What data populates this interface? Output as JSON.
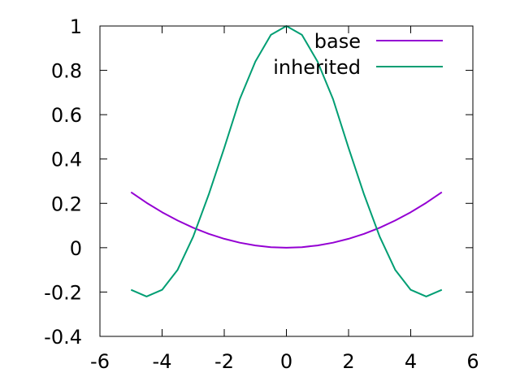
{
  "chart_data": {
    "type": "line",
    "title": "",
    "xlabel": "",
    "ylabel": "",
    "xlim": [
      -6,
      6
    ],
    "ylim": [
      -0.4,
      1
    ],
    "x_ticks": [
      -6,
      -4,
      -2,
      0,
      2,
      4,
      6
    ],
    "y_ticks": [
      -0.4,
      -0.2,
      0,
      0.2,
      0.4,
      0.6,
      0.8,
      1
    ],
    "x_tick_labels": [
      "-6",
      "-4",
      "-2",
      "0",
      "2",
      "4",
      "6"
    ],
    "y_tick_labels": [
      "-0.4",
      "-0.2",
      "0",
      "0.2",
      "0.4",
      "0.6",
      "0.8",
      "1"
    ],
    "grid": false,
    "legend_position": "top-right",
    "series": [
      {
        "name": "base",
        "color": "#9400d3",
        "x": [
          -5,
          -4.5,
          -4,
          -3.5,
          -3,
          -2.5,
          -2,
          -1.5,
          -1,
          -0.5,
          0,
          0.5,
          1,
          1.5,
          2,
          2.5,
          3,
          3.5,
          4,
          4.5,
          5
        ],
        "y": [
          0.25,
          0.2025,
          0.16,
          0.1225,
          0.09,
          0.0625,
          0.04,
          0.0225,
          0.01,
          0.0025,
          0,
          0.0025,
          0.01,
          0.0225,
          0.04,
          0.0625,
          0.09,
          0.1225,
          0.16,
          0.2025,
          0.25
        ]
      },
      {
        "name": "inherited",
        "color": "#009e73",
        "x": [
          -5,
          -4.5,
          -4,
          -3.5,
          -3,
          -2.5,
          -2,
          -1.5,
          -1,
          -0.5,
          0,
          0.5,
          1,
          1.5,
          2,
          2.5,
          3,
          3.5,
          4,
          4.5,
          5
        ],
        "y": [
          -0.19,
          -0.22,
          -0.19,
          -0.1,
          0.05,
          0.24,
          0.45,
          0.67,
          0.84,
          0.96,
          1,
          0.96,
          0.84,
          0.67,
          0.45,
          0.24,
          0.05,
          -0.1,
          -0.19,
          -0.22,
          -0.19
        ]
      }
    ]
  }
}
